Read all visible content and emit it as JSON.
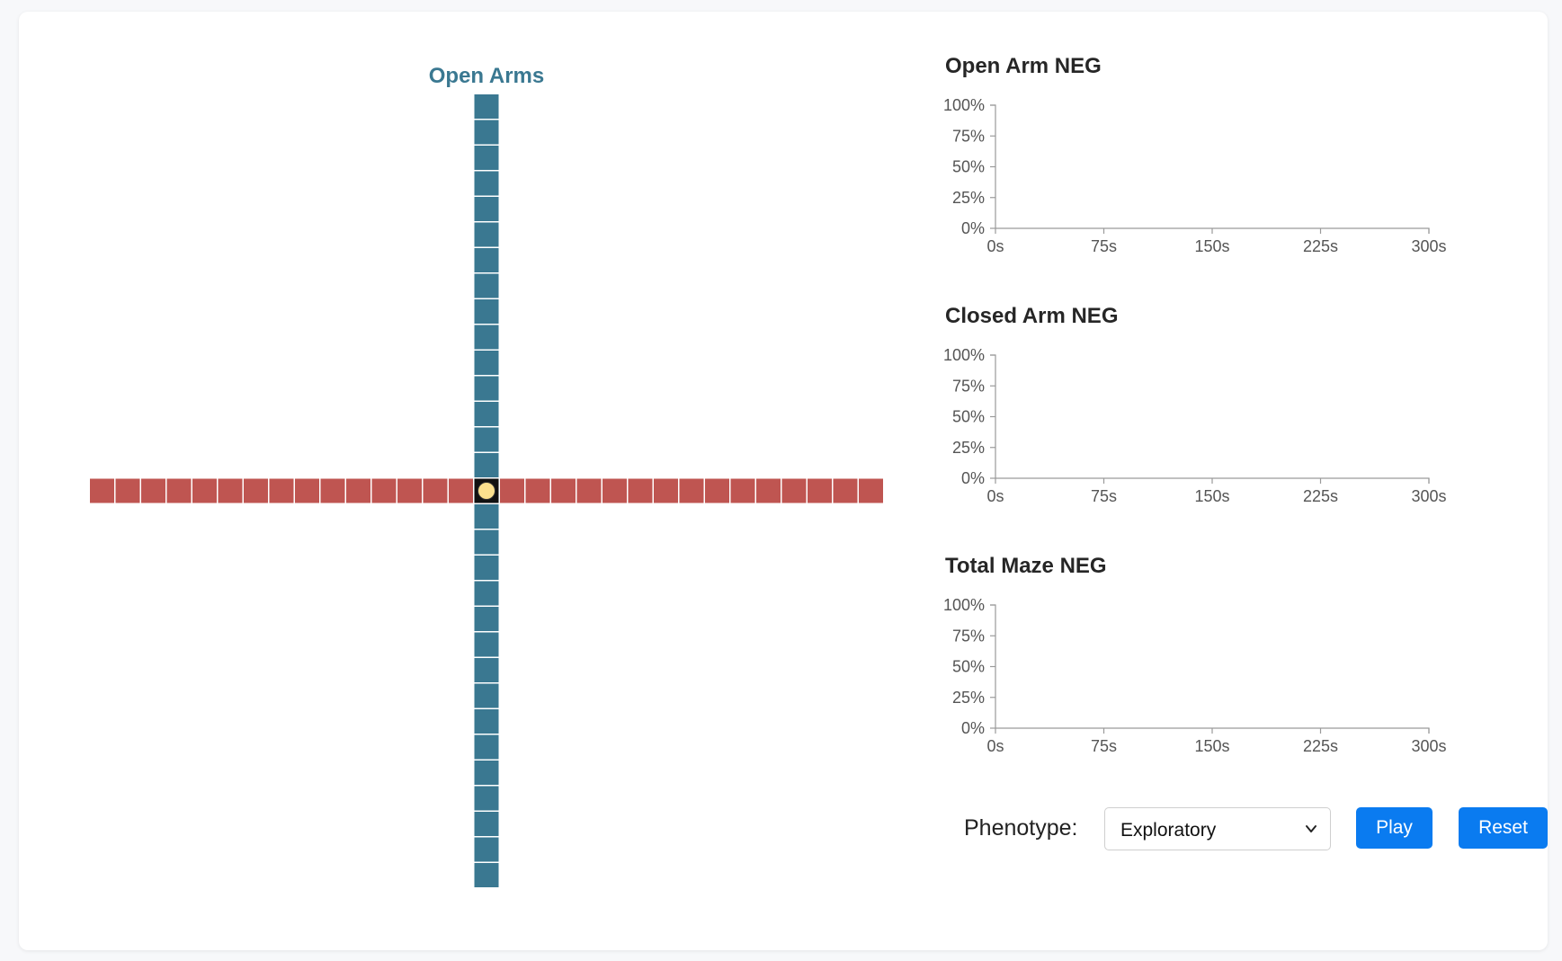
{
  "maze": {
    "title": "Open Arms",
    "open_arm_color": "#3a7891",
    "closed_arm_color": "#bf5551",
    "animal_color": "#fbe08e"
  },
  "chart_data": [
    {
      "type": "line",
      "title": "Open Arm NEG",
      "xlabel": "",
      "ylabel": "",
      "x_ticks": [
        "0s",
        "75s",
        "150s",
        "225s",
        "300s"
      ],
      "y_ticks": [
        "0%",
        "25%",
        "50%",
        "75%",
        "100%"
      ],
      "xlim": [
        0,
        300
      ],
      "ylim": [
        0,
        100
      ],
      "series": [],
      "grid": false
    },
    {
      "type": "line",
      "title": "Closed Arm NEG",
      "xlabel": "",
      "ylabel": "",
      "x_ticks": [
        "0s",
        "75s",
        "150s",
        "225s",
        "300s"
      ],
      "y_ticks": [
        "0%",
        "25%",
        "50%",
        "75%",
        "100%"
      ],
      "xlim": [
        0,
        300
      ],
      "ylim": [
        0,
        100
      ],
      "series": [],
      "grid": false
    },
    {
      "type": "line",
      "title": "Total Maze NEG",
      "xlabel": "",
      "ylabel": "",
      "x_ticks": [
        "0s",
        "75s",
        "150s",
        "225s",
        "300s"
      ],
      "y_ticks": [
        "0%",
        "25%",
        "50%",
        "75%",
        "100%"
      ],
      "xlim": [
        0,
        300
      ],
      "ylim": [
        0,
        100
      ],
      "series": [],
      "grid": false
    }
  ],
  "controls": {
    "phenotype_label": "Phenotype:",
    "phenotype_value": "Exploratory",
    "play_label": "Play",
    "reset_label": "Reset",
    "button_color": "#0a7bf0"
  }
}
